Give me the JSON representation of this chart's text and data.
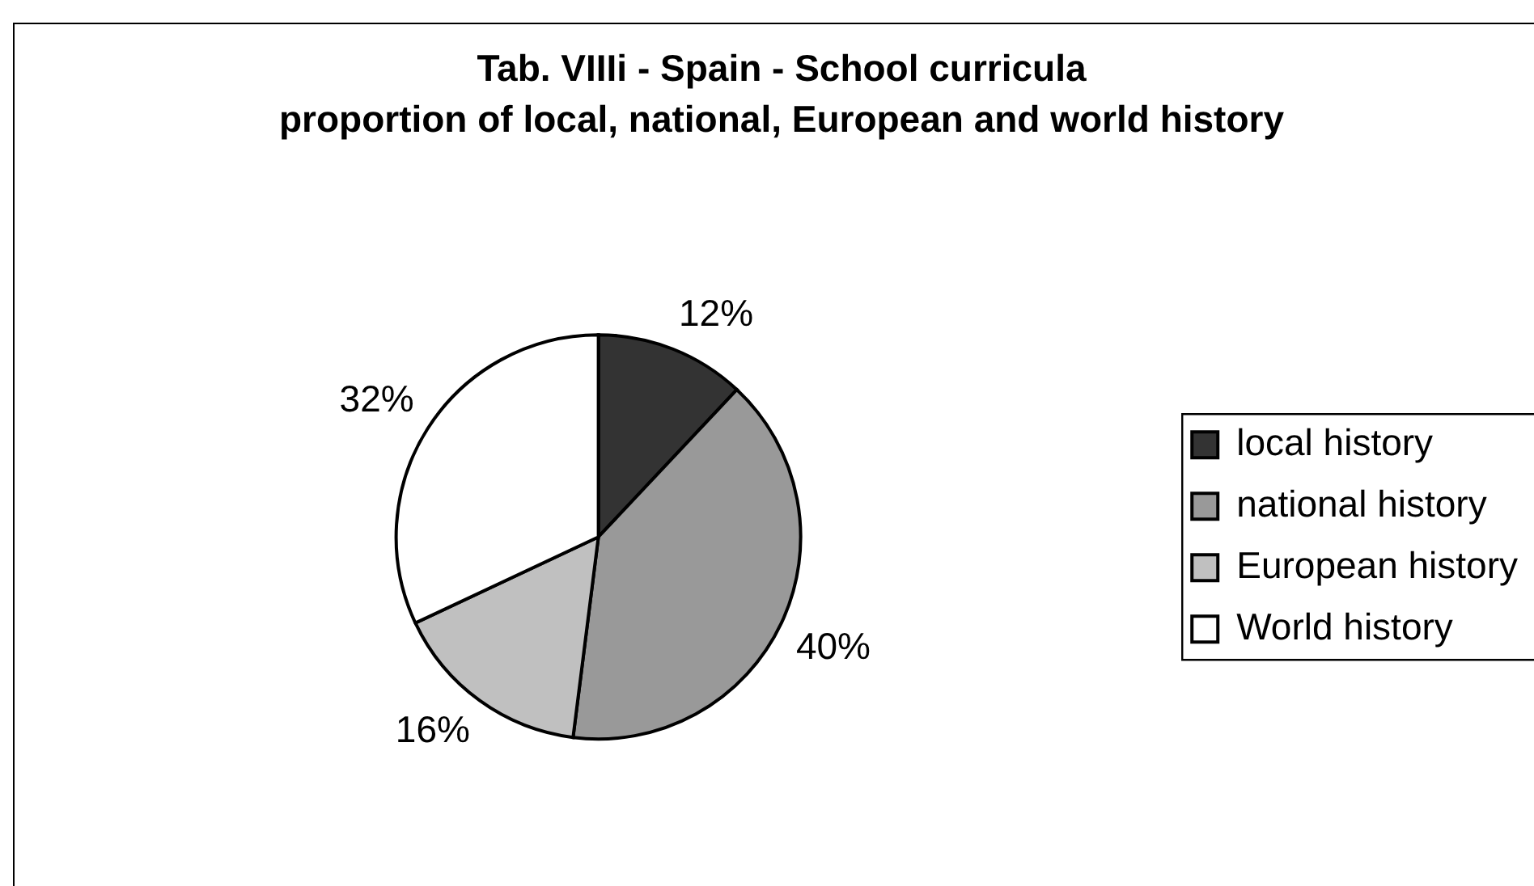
{
  "chart_data": {
    "type": "pie",
    "title": "Tab. VIIIi - Spain - School curricula",
    "subtitle": "proportion of local, national, European and world history",
    "categories": [
      "local history",
      "national history",
      "European history",
      "World history"
    ],
    "values": [
      12,
      40,
      16,
      32
    ],
    "colors": [
      "#333333",
      "#999999",
      "#c0c0c0",
      "#ffffff"
    ],
    "value_labels": [
      "12%",
      "40%",
      "16%",
      "32%"
    ],
    "legend": "right"
  }
}
